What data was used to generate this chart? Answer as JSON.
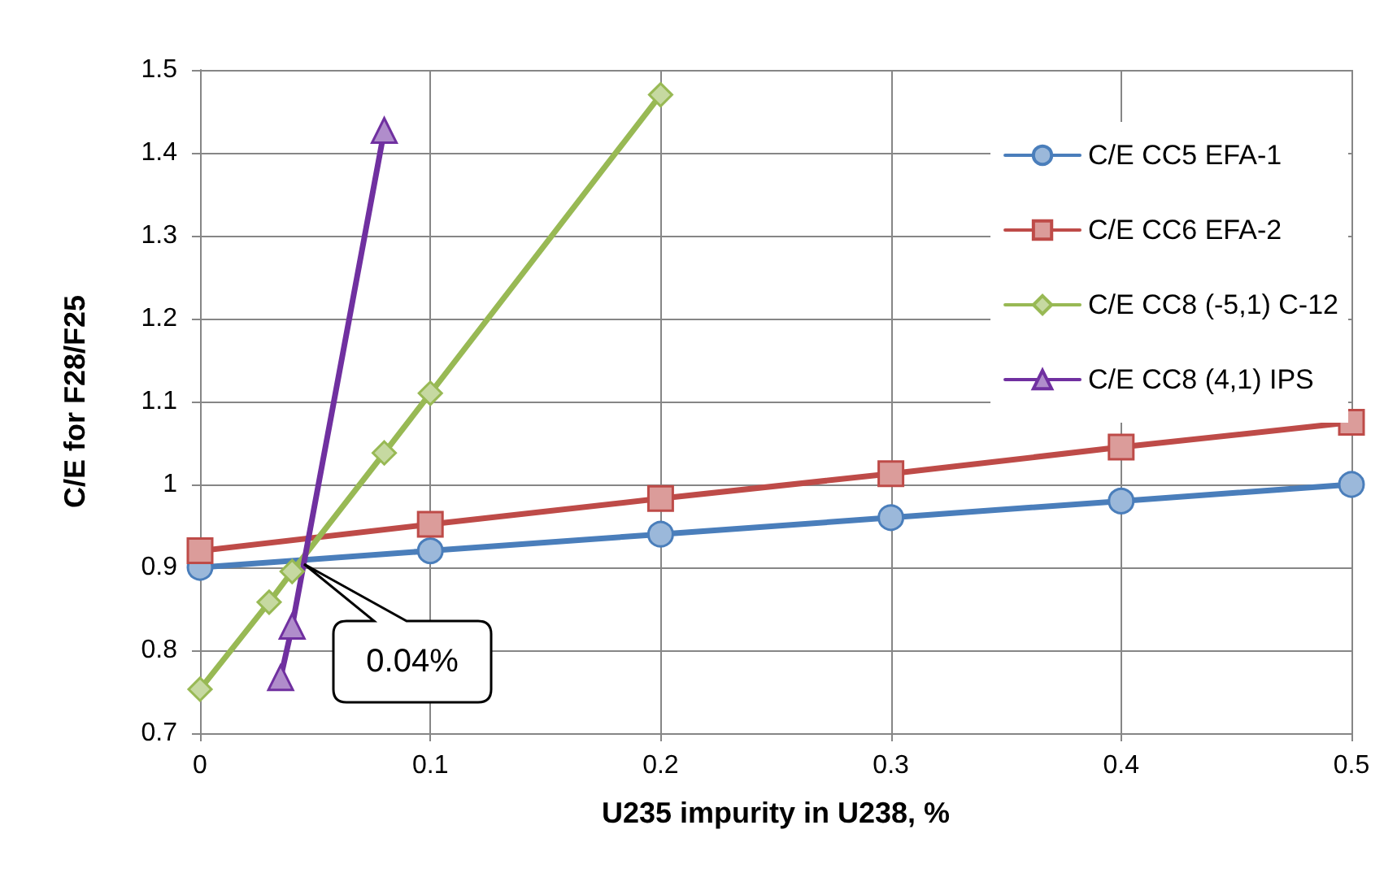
{
  "chart_data": {
    "type": "line",
    "xlabel": "U235 impurity in U238, %",
    "ylabel": "C/E for F28/F25",
    "xlim": [
      0,
      0.5
    ],
    "xticks": [
      0,
      0.1,
      0.2,
      0.3,
      0.4,
      0.5
    ],
    "ylim": [
      0.7,
      1.5
    ],
    "yticks": [
      0.7,
      0.8,
      0.9,
      {
        "value": 1,
        "label": "1"
      },
      1.1,
      1.2,
      1.3,
      1.4,
      1.5
    ],
    "grid": true,
    "legend": "top right",
    "series": [
      {
        "name": "C/E CC5 EFA-1",
        "color": "#4a7ebb",
        "marker": "circle",
        "x": [
          0,
          0.1,
          0.2,
          0.3,
          0.4,
          0.5
        ],
        "values": [
          0.9,
          0.92,
          0.94,
          0.96,
          0.98,
          1.0
        ]
      },
      {
        "name": "C/E CC6 EFA-2",
        "color": "#be4b48",
        "marker": "square",
        "x": [
          0,
          0.1,
          0.2,
          0.3,
          0.4,
          0.5
        ],
        "values": [
          0.92,
          0.952,
          0.983,
          1.013,
          1.045,
          1.075
        ]
      },
      {
        "name": "C/E CC8 (-5,1) C-12",
        "color": "#98b954",
        "marker": "diamond",
        "x": [
          0,
          0.03,
          0.04,
          0.08,
          0.1,
          0.2
        ],
        "values": [
          0.753,
          0.858,
          0.895,
          1.038,
          1.11,
          1.47
        ]
      },
      {
        "name": "C/E CC8 (4,1) IPS",
        "color": "#7030a0",
        "marker": "triangle",
        "x": [
          0.035,
          0.04,
          0.08
        ],
        "values": [
          0.767,
          0.829,
          1.427
        ]
      }
    ],
    "annotations": [
      "0.04%"
    ]
  }
}
